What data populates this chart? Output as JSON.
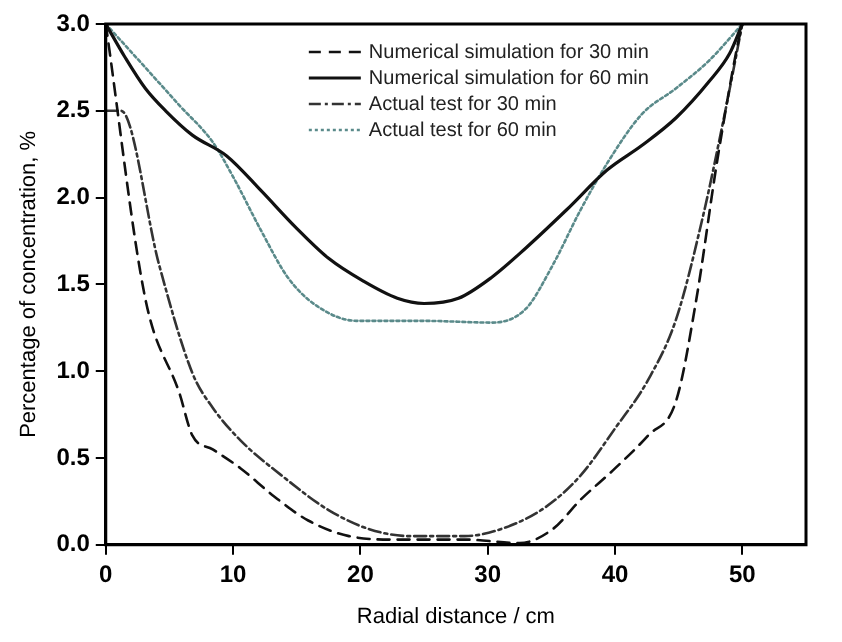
{
  "chart_data": {
    "type": "line",
    "xlabel": "Radial distance / cm",
    "ylabel": "Percentage of concentration, %",
    "xlim": [
      0,
      55
    ],
    "xticks": [
      0,
      10,
      20,
      30,
      40,
      50
    ],
    "ylim": [
      0,
      3
    ],
    "yticks": [
      {
        "value": 0,
        "label": "0.0"
      },
      {
        "value": 0.5,
        "label": "0.5"
      },
      {
        "value": 1,
        "label": "1.0"
      },
      {
        "value": 1.5,
        "label": "1.5"
      },
      {
        "value": 2,
        "label": "2.0"
      },
      {
        "value": 2.5,
        "label": "2.5"
      },
      {
        "value": 3,
        "label": "3.0"
      }
    ],
    "grid": false,
    "legend": "top",
    "marker": "none",
    "series": [
      {
        "name": "Numerical simulation for 30 min",
        "color": "#111111",
        "line_style": "dashed",
        "x": [
          0,
          3.1,
          5.8,
          6.8,
          8.4,
          10.6,
          13.2,
          15.9,
          19.1,
          22.9,
          28.2,
          32.5,
          35.1,
          37.3,
          40,
          42.6,
          44.8,
          46.4,
          48,
          49.6,
          50
        ],
        "values": [
          3,
          1.42,
          0.87,
          0.63,
          0.55,
          0.44,
          0.28,
          0.14,
          0.05,
          0.03,
          0.03,
          0.01,
          0.09,
          0.26,
          0.44,
          0.63,
          0.83,
          1.42,
          2.2,
          2.87,
          3
        ]
      },
      {
        "name": "Numerical simulation for 60 min",
        "color": "#111111",
        "line_style": "solid",
        "x": [
          0,
          1.5,
          3.1,
          4.7,
          6.8,
          9.5,
          12.2,
          14.9,
          17.5,
          20.2,
          22.9,
          25,
          27.7,
          30.3,
          33,
          36.2,
          39.4,
          42.1,
          44.8,
          47.4,
          49,
          50
        ],
        "values": [
          3,
          2.81,
          2.63,
          2.5,
          2.36,
          2.24,
          2.04,
          1.83,
          1.65,
          1.52,
          1.42,
          1.39,
          1.42,
          1.54,
          1.71,
          1.93,
          2.16,
          2.3,
          2.46,
          2.67,
          2.83,
          3
        ]
      },
      {
        "name": "Actual test for 30 min",
        "color": "#333333",
        "line_style": "dashdot",
        "x": [
          0,
          1.2,
          4.2,
          6.8,
          8.4,
          10.6,
          13.8,
          17.5,
          20.7,
          23.9,
          28.2,
          31.4,
          34.6,
          37.3,
          40,
          42.6,
          44.8,
          46.9,
          48.5,
          50
        ],
        "values": [
          2.5,
          2.5,
          1.61,
          0.99,
          0.79,
          0.6,
          0.4,
          0.2,
          0.09,
          0.05,
          0.05,
          0.1,
          0.22,
          0.4,
          0.67,
          0.95,
          1.3,
          1.89,
          2.44,
          3
        ]
      },
      {
        "name": "Actual test for 60 min",
        "color": "#5a8a8a",
        "line_style": "dotted",
        "x": [
          0,
          3.1,
          5.8,
          8.4,
          10,
          12.2,
          14.3,
          16.5,
          19.7,
          25,
          30.3,
          33,
          35.1,
          37.3,
          39.4,
          42.1,
          44.8,
          47.4,
          50
        ],
        "values": [
          3,
          2.75,
          2.53,
          2.32,
          2.12,
          1.81,
          1.54,
          1.38,
          1.29,
          1.29,
          1.28,
          1.36,
          1.61,
          1.93,
          2.2,
          2.48,
          2.63,
          2.79,
          3
        ]
      }
    ]
  }
}
